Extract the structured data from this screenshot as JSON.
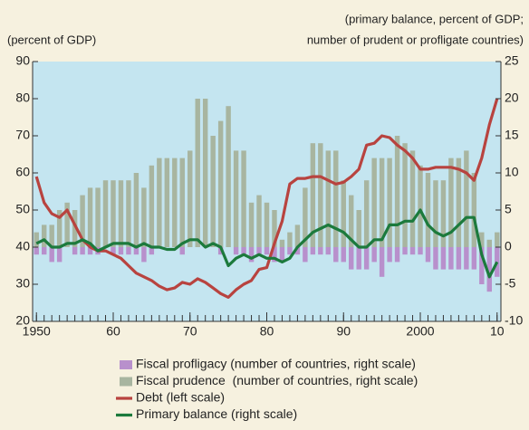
{
  "chart_data": {
    "type": "combo",
    "ylabel": "(percent of GDP)",
    "y2label_lines": [
      "(primary balance, percent of GDP;",
      "number of prudent or profligate countries)"
    ],
    "x": [
      1950,
      1951,
      1952,
      1953,
      1954,
      1955,
      1956,
      1957,
      1958,
      1959,
      1960,
      1961,
      1962,
      1963,
      1964,
      1965,
      1966,
      1967,
      1968,
      1969,
      1970,
      1971,
      1972,
      1973,
      1974,
      1975,
      1976,
      1977,
      1978,
      1979,
      1980,
      1981,
      1982,
      1983,
      1984,
      1985,
      1986,
      1987,
      1988,
      1989,
      1990,
      1991,
      1992,
      1993,
      1994,
      1995,
      1996,
      1997,
      1998,
      1999,
      2000,
      2001,
      2002,
      2003,
      2004,
      2005,
      2006,
      2007,
      2008,
      2009,
      2010
    ],
    "xlim": [
      1949.5,
      2010.5
    ],
    "xticks": [
      1950,
      {
        "value": 1960,
        "label": "60"
      },
      {
        "value": 1970,
        "label": "70"
      },
      {
        "value": 1980,
        "label": "80"
      },
      {
        "value": 1990,
        "label": "90"
      },
      2000,
      {
        "value": 2010,
        "label": "10"
      }
    ],
    "ylim": [
      20,
      90
    ],
    "yticks": [
      20,
      30,
      40,
      50,
      60,
      70,
      80,
      90
    ],
    "y2lim": [
      -10,
      25
    ],
    "y2ticks": [
      -10,
      -5,
      0,
      5,
      10,
      15,
      20,
      25
    ],
    "series": [
      {
        "name": "Fiscal profligacy (number of countries, right scale)",
        "type": "bar",
        "axis": "y2",
        "color": "#b890cc",
        "values": [
          -1,
          -1,
          -2,
          -2,
          0,
          -1,
          -1,
          -1,
          -1,
          0,
          -1,
          -1,
          -1,
          -1,
          -2,
          -1,
          0,
          0,
          0,
          -1,
          0,
          0,
          0,
          0,
          -1,
          0,
          -1,
          -1,
          -2,
          -1,
          -1,
          -2,
          -2,
          -1,
          -1,
          -2,
          -1,
          -1,
          -1,
          -2,
          -2,
          -3,
          -3,
          -3,
          -2,
          -4,
          -2,
          -2,
          -1,
          -1,
          -1,
          -2,
          -3,
          -3,
          -3,
          -3,
          -3,
          -3,
          -5,
          -6,
          -4
        ]
      },
      {
        "name": "Fiscal prudence  (number of countries, right scale)",
        "type": "bar",
        "axis": "y2",
        "color": "#a8b5a0",
        "values": [
          2,
          3,
          3,
          5,
          6,
          5,
          7,
          8,
          8,
          9,
          9,
          9,
          9,
          10,
          8,
          11,
          12,
          12,
          12,
          12,
          13,
          20,
          20,
          15,
          17,
          19,
          13,
          13,
          6,
          7,
          6,
          5,
          1,
          2,
          3,
          8,
          14,
          14,
          13,
          13,
          9,
          7,
          5,
          9,
          12,
          12,
          12,
          15,
          14,
          13,
          11,
          10,
          9,
          9,
          12,
          12,
          13,
          10,
          2,
          1,
          2
        ]
      },
      {
        "name": "Debt (left scale)",
        "type": "line",
        "axis": "y",
        "color": "#b8433f",
        "values": [
          59,
          52,
          49,
          48,
          50,
          46,
          42,
          40,
          39,
          39,
          38,
          37,
          35,
          33,
          32,
          31,
          29.5,
          28.5,
          29,
          30.5,
          30,
          31.5,
          30.5,
          29,
          27.5,
          26.5,
          28.5,
          30,
          31,
          34,
          34.5,
          41,
          47,
          57,
          58.5,
          58.5,
          59,
          59,
          58,
          57,
          57.5,
          59,
          61,
          67.5,
          68,
          70,
          69.5,
          67.5,
          66,
          64,
          61,
          61,
          61.5,
          61.5,
          61.5,
          61,
          60,
          58,
          64,
          73,
          80
        ]
      },
      {
        "name": "Primary balance (right scale)",
        "type": "line",
        "axis": "y2",
        "color": "#1c7a3c",
        "values": [
          0.5,
          1,
          0,
          0,
          0.5,
          0.5,
          1,
          0.5,
          -0.5,
          0,
          0.5,
          0.5,
          0.5,
          0,
          0.5,
          0,
          0,
          -0.3,
          -0.3,
          0.5,
          1,
          1,
          0,
          0.5,
          0,
          -2.5,
          -1.5,
          -1,
          -1.5,
          -1,
          -1.5,
          -1.5,
          -2,
          -1.5,
          0,
          1,
          2,
          2.5,
          3,
          2.5,
          2,
          1,
          0,
          0,
          1,
          1,
          3,
          3,
          3.5,
          3.5,
          5,
          3,
          2,
          1.5,
          2,
          3,
          4,
          4,
          -1,
          -4,
          -2
        ]
      }
    ]
  }
}
